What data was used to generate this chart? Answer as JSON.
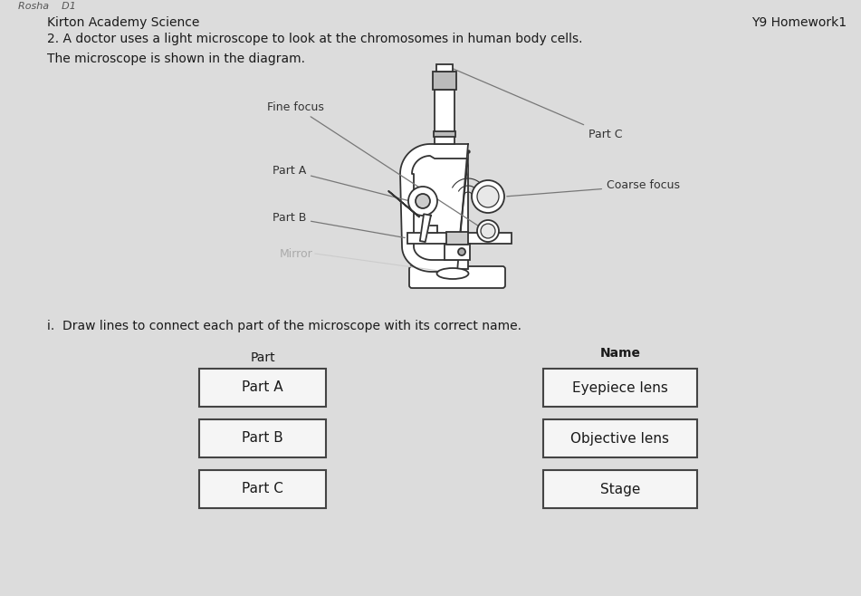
{
  "background_color": "#e8e8e8",
  "page_color": "#e0e0e0",
  "title_left": "Kirton Academy Science",
  "title_right": "Y9 Homework1",
  "question": "2. A doctor uses a light microscope to look at the chromosomes in human body cells.",
  "subtitle": "The microscope is shown in the diagram.",
  "instruction": "i.  Draw lines to connect each part of the microscope with its correct name.",
  "part_header": "Part",
  "name_header": "Name",
  "parts": [
    "Part A",
    "Part B",
    "Part C"
  ],
  "names": [
    "Eyepiece lens",
    "Objective lens",
    "Stage"
  ],
  "box_color": "#f5f5f5",
  "box_edge_color": "#444444",
  "text_color": "#1a1a1a",
  "font_size_title": 10,
  "font_size_body": 10,
  "font_size_box": 11,
  "font_size_label": 9,
  "label_color": "#333333",
  "line_color": "#777777",
  "micro_color": "#333333",
  "micro_fill": "#ffffff",
  "micro_lw": 1.2
}
